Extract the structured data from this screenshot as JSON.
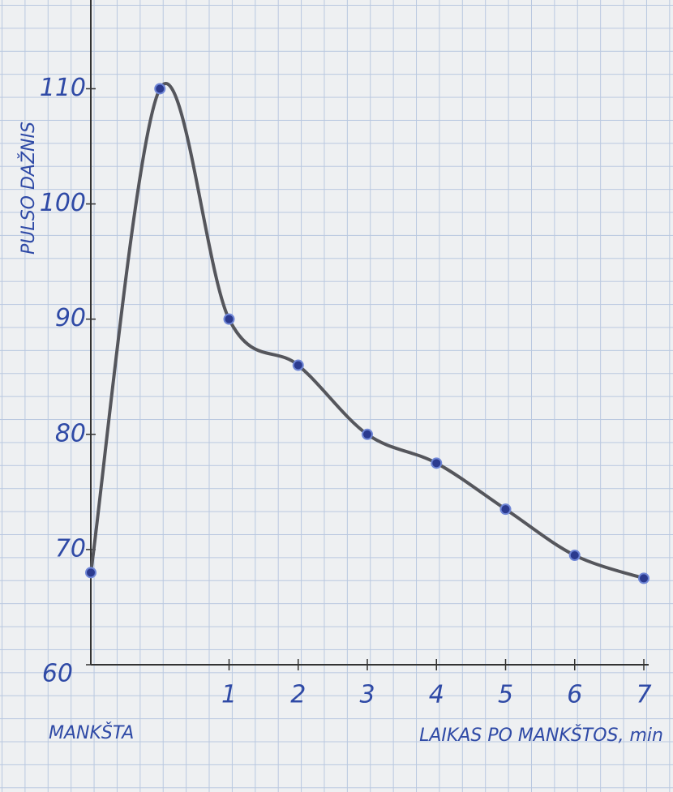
{
  "chart_data": {
    "type": "line",
    "x_label": "LAIKAS PO MANKŠTOS, min",
    "y_label": "PULSO DAŽNIS",
    "annotation": "MANKŠTA",
    "x": [
      -1,
      0,
      1,
      2,
      3,
      4,
      5,
      6,
      7
    ],
    "series": [
      {
        "color": "#55565c",
        "marker_color": "#2b3a8f",
        "values": [
          68,
          110,
          90,
          86,
          80,
          77.5,
          73.5,
          69.5,
          67.5
        ]
      }
    ],
    "xlim": [
      -1,
      7
    ],
    "xticks": [
      1,
      2,
      3,
      4,
      5,
      6,
      7
    ],
    "ylim": [
      60,
      117
    ],
    "yticks": [
      60,
      70,
      80,
      90,
      100,
      110
    ],
    "smooth": true
  }
}
